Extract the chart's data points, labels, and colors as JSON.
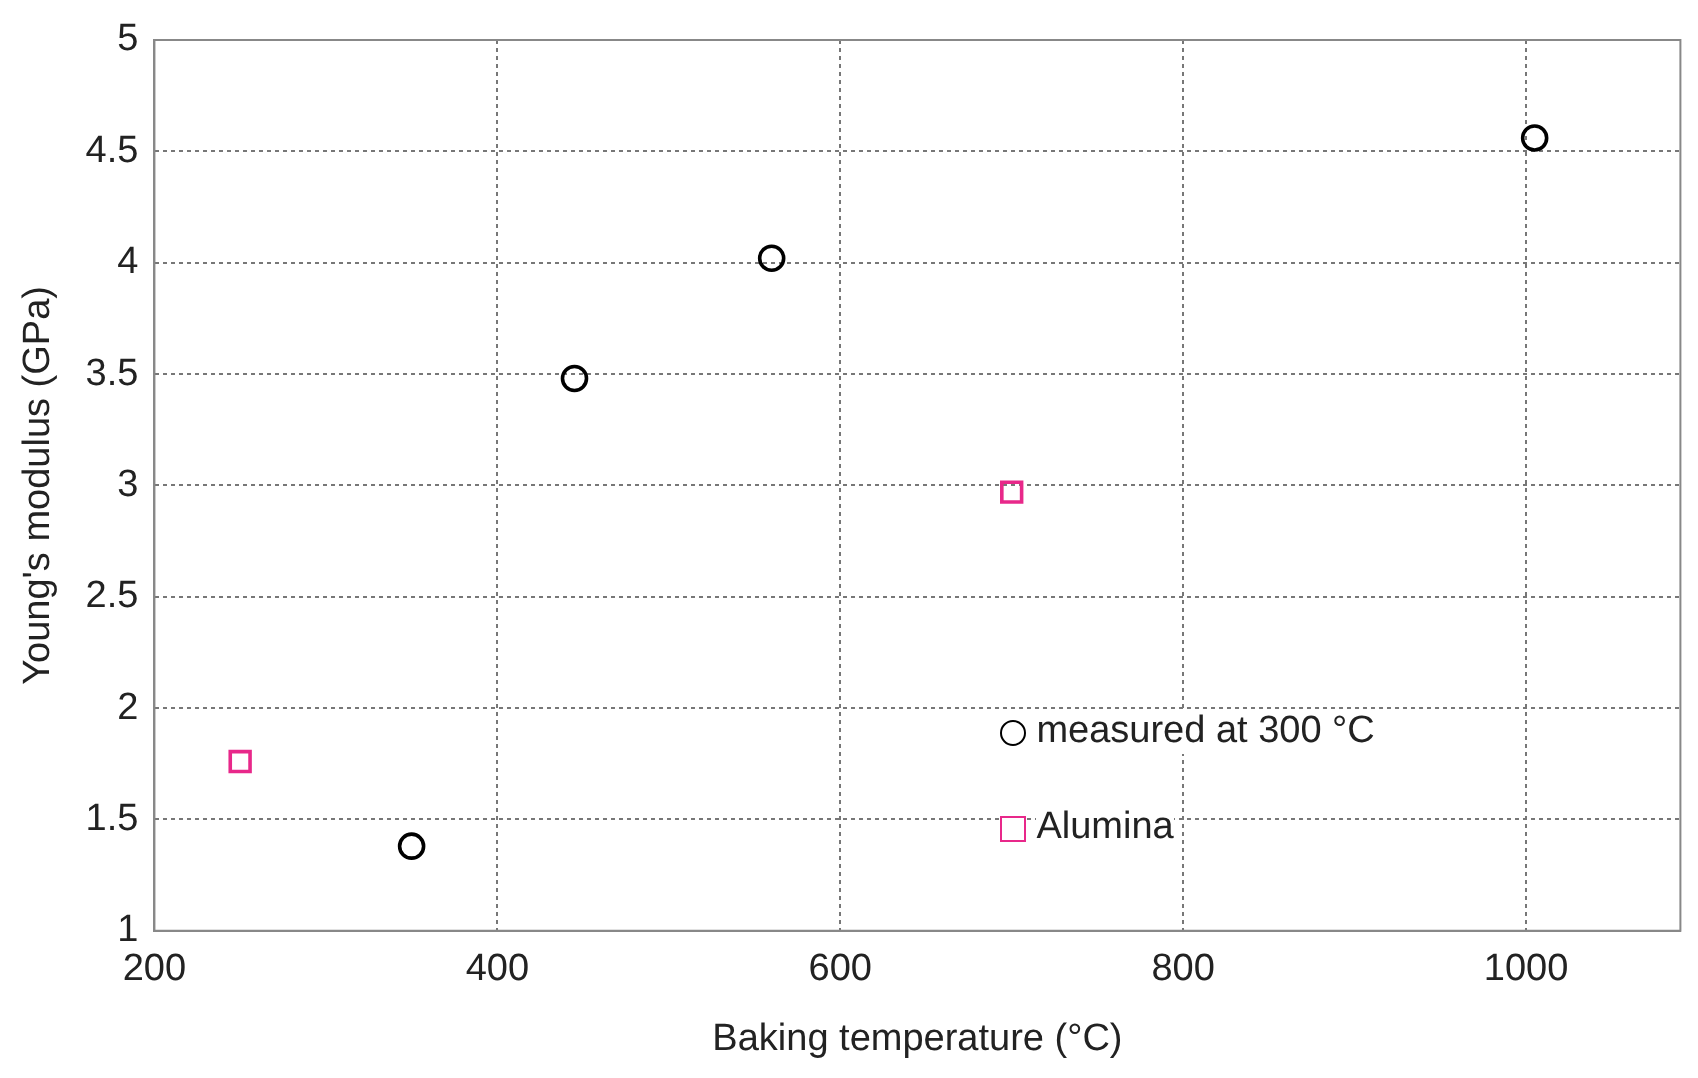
{
  "chart_data": {
    "type": "scatter",
    "xlabel": "Baking temperature (°C)",
    "ylabel": "Young's modulus (GPa)",
    "xlim": [
      200,
      1090
    ],
    "xticks": [
      200,
      400,
      600,
      800,
      1000
    ],
    "ylim": [
      1,
      5
    ],
    "yticks": [
      1,
      1.5,
      2,
      2.5,
      3,
      3.5,
      4,
      4.5,
      5
    ],
    "grid": true,
    "legend": "bottom right",
    "series": [
      {
        "name": "measured at 300 °C",
        "color": "#000000",
        "marker": "circle",
        "x": [
          350,
          445,
          560,
          1005
        ],
        "values": [
          1.38,
          3.48,
          4.02,
          4.56
        ]
      },
      {
        "name": "Alumina",
        "color": "#e8288a",
        "marker": "square",
        "x": [
          250,
          700
        ],
        "values": [
          1.76,
          2.97
        ]
      }
    ]
  }
}
